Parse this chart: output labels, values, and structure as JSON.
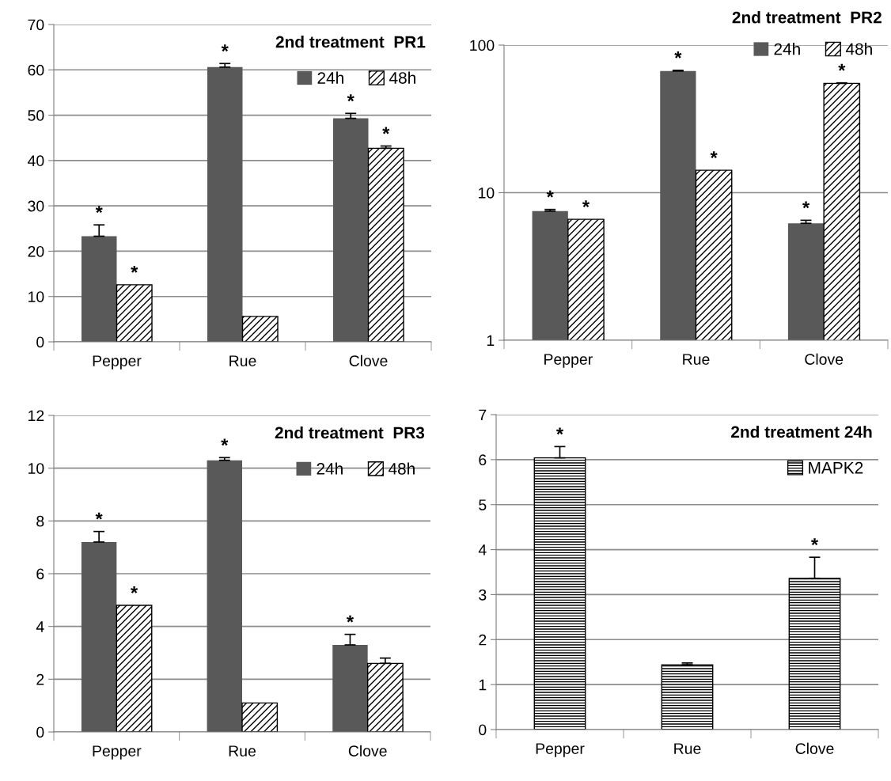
{
  "chart_data": [
    {
      "type": "bar",
      "title": "2nd treatment  PR1",
      "categories": [
        "Pepper",
        "Rue",
        "Clove"
      ],
      "ylim": [
        0,
        70
      ],
      "yticks": [
        0,
        10,
        20,
        30,
        40,
        50,
        60,
        70
      ],
      "grid": "y",
      "legend": "top right",
      "series": [
        {
          "name": "24h",
          "color": "#595959",
          "values": [
            23.3,
            60.6,
            49.3
          ],
          "errors": [
            [
              23.3,
              25.8
            ],
            [
              60.6,
              61.4
            ],
            [
              49.3,
              50.4
            ]
          ],
          "value_labels": [
            "*",
            "*",
            "*"
          ]
        },
        {
          "name": "48h",
          "color": "#000000",
          "values": [
            12.6,
            5.6,
            42.7
          ],
          "errors": [
            null,
            null,
            [
              42.7,
              43.2
            ]
          ],
          "value_labels": [
            "*",
            null,
            "*"
          ]
        }
      ]
    },
    {
      "type": "bar",
      "title": "2nd treatment  PR2",
      "categories": [
        "Pepper",
        "Rue",
        "Clove"
      ],
      "log": true,
      "ylim": [
        1,
        100
      ],
      "yticks": [
        1,
        10,
        100
      ],
      "grid": "y",
      "legend": "top right",
      "series": [
        {
          "name": "24h",
          "color": "#595959",
          "values": [
            7.5,
            66.7,
            6.2
          ],
          "errors": [
            [
              7.5,
              7.7
            ],
            [
              66.7,
              67.5
            ],
            [
              6.2,
              6.5
            ]
          ],
          "value_labels": [
            "*",
            "*",
            "*"
          ]
        },
        {
          "name": "48h",
          "color": "#000000",
          "values": [
            6.6,
            14.2,
            55
          ],
          "errors": [
            null,
            null,
            [
              55,
              55.5
            ]
          ],
          "value_labels": [
            "*",
            "*",
            "*"
          ]
        }
      ]
    },
    {
      "type": "bar",
      "title": "2nd treatment  PR3",
      "categories": [
        "Pepper",
        "Rue",
        "Clove"
      ],
      "ylim": [
        0,
        12
      ],
      "yticks": [
        0,
        2,
        4,
        6,
        8,
        10,
        12
      ],
      "grid": "y",
      "legend": "top right",
      "series": [
        {
          "name": "24h",
          "color": "#595959",
          "values": [
            7.2,
            10.3,
            3.3
          ],
          "errors": [
            [
              7.2,
              7.6
            ],
            [
              10.3,
              10.4
            ],
            [
              3.3,
              3.7
            ]
          ],
          "value_labels": [
            "*",
            "*",
            "*"
          ]
        },
        {
          "name": "48h",
          "color": "#000000",
          "values": [
            4.8,
            1.1,
            2.6
          ],
          "errors": [
            null,
            null,
            [
              2.6,
              2.8
            ]
          ],
          "value_labels": [
            "*",
            null,
            null
          ]
        }
      ]
    },
    {
      "type": "bar",
      "title": "2nd treatment 24h",
      "categories": [
        "Pepper",
        "Rue",
        "Clove"
      ],
      "ylim": [
        0,
        7
      ],
      "yticks": [
        0,
        1,
        2,
        3,
        4,
        5,
        6,
        7
      ],
      "grid": "y",
      "legend": "top right",
      "series": [
        {
          "name": "MAPK2",
          "color": "#000000",
          "values": [
            6.04,
            1.44,
            3.36
          ],
          "errors": [
            [
              6.04,
              6.29
            ],
            [
              1.44,
              1.48
            ],
            [
              3.36,
              3.83
            ]
          ],
          "value_labels": [
            "*",
            null,
            "*"
          ]
        }
      ]
    }
  ]
}
